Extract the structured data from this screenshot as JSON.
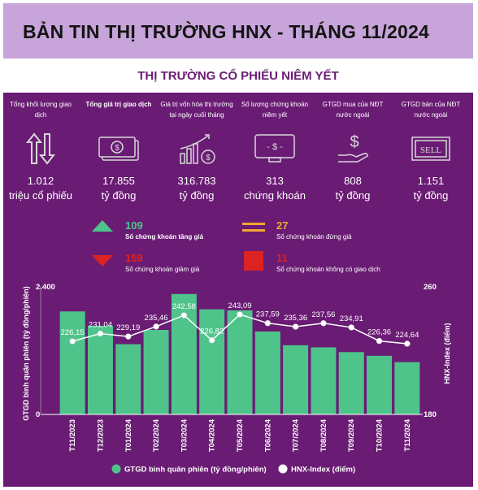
{
  "header": {
    "title": "BẢN TIN THỊ TRƯỜNG HNX - THÁNG 11/2024"
  },
  "section": {
    "title": "THỊ TRƯỜNG CỔ PHIẾU NIÊM YẾT"
  },
  "metrics": [
    {
      "label": "Tổng khối lượng giao dịch",
      "value": "1.012",
      "unit": "triệu cổ phiếu",
      "icon": "up-down-arrows-icon"
    },
    {
      "label": "Tổng giá trị giao dịch",
      "value": "17.855",
      "unit": "tỷ đồng",
      "icon": "banknotes-icon"
    },
    {
      "label": "Giá trị vốn hóa thị trường tại ngày cuối tháng",
      "value": "316.783",
      "unit": "tỷ đồng",
      "icon": "growth-chart-coins-icon"
    },
    {
      "label": "Số lượng chứng khoán niêm yết",
      "value": "313",
      "unit": "chứng khoán",
      "icon": "monitor-dollar-icon"
    },
    {
      "label": "GTGD mua của NĐT nước ngoài",
      "value": "808",
      "unit": "tỷ đồng",
      "icon": "hand-dollar-icon"
    },
    {
      "label": "GTGD bán của NĐT nước ngoài",
      "value": "1.151",
      "unit": "tỷ đồng",
      "icon": "sell-sign-icon"
    }
  ],
  "breadth": {
    "up": {
      "value": "109",
      "label": "Số chứng khoán tăng giá",
      "color": "#4ec48a"
    },
    "flat": {
      "value": "27",
      "label": "Số chứng khoán đứng giá",
      "color": "#f0a830"
    },
    "down": {
      "value": "159",
      "label": "Số chứng khoán giảm giá",
      "color": "#dd2222"
    },
    "none": {
      "value": "11",
      "label": "Số chứng khoán không có giao dịch",
      "color": "#dd2222"
    }
  },
  "chart_data": {
    "type": "bar",
    "categories": [
      "T11/2023",
      "T12/2023",
      "T01/2024",
      "T02/2024",
      "T03/2024",
      "T04/2024",
      "T05/2024",
      "T06/2024",
      "T07/2024",
      "T08/2024",
      "T09/2024",
      "T10/2024",
      "T11/2024"
    ],
    "series": [
      {
        "name": "GTGD bình quân phiên (tỷ đồng/phiên)",
        "type": "bar",
        "axis": "left",
        "color": "#4ec48a",
        "values": [
          1950,
          1680,
          1330,
          1600,
          2280,
          1990,
          1970,
          1570,
          1310,
          1270,
          1180,
          1110,
          990
        ]
      },
      {
        "name": "HNX-Index (điểm)",
        "type": "line",
        "axis": "right",
        "color": "#ffffff",
        "values": [
          226.15,
          231.04,
          229.19,
          235.46,
          242.58,
          226.82,
          243.09,
          237.59,
          235.36,
          237.56,
          234.91,
          226.36,
          224.64
        ],
        "labels": [
          "226,15",
          "231,04",
          "229,19",
          "235,46",
          "242,58",
          "226,82",
          "243,09",
          "237,59",
          "235,36",
          "237,56",
          "234,91",
          "226,36",
          "224,64"
        ]
      }
    ],
    "ylabel": "GTGD bình quân phiên (tỷ đồng/phiên)",
    "ylabel_right": "HNX-Index (điểm)",
    "ylim": [
      0,
      2400
    ],
    "ylim_right": [
      180,
      260
    ],
    "yticks": [
      "0",
      "2.400"
    ],
    "yticks_right": [
      "180",
      "260"
    ],
    "legend_position": "bottom"
  }
}
